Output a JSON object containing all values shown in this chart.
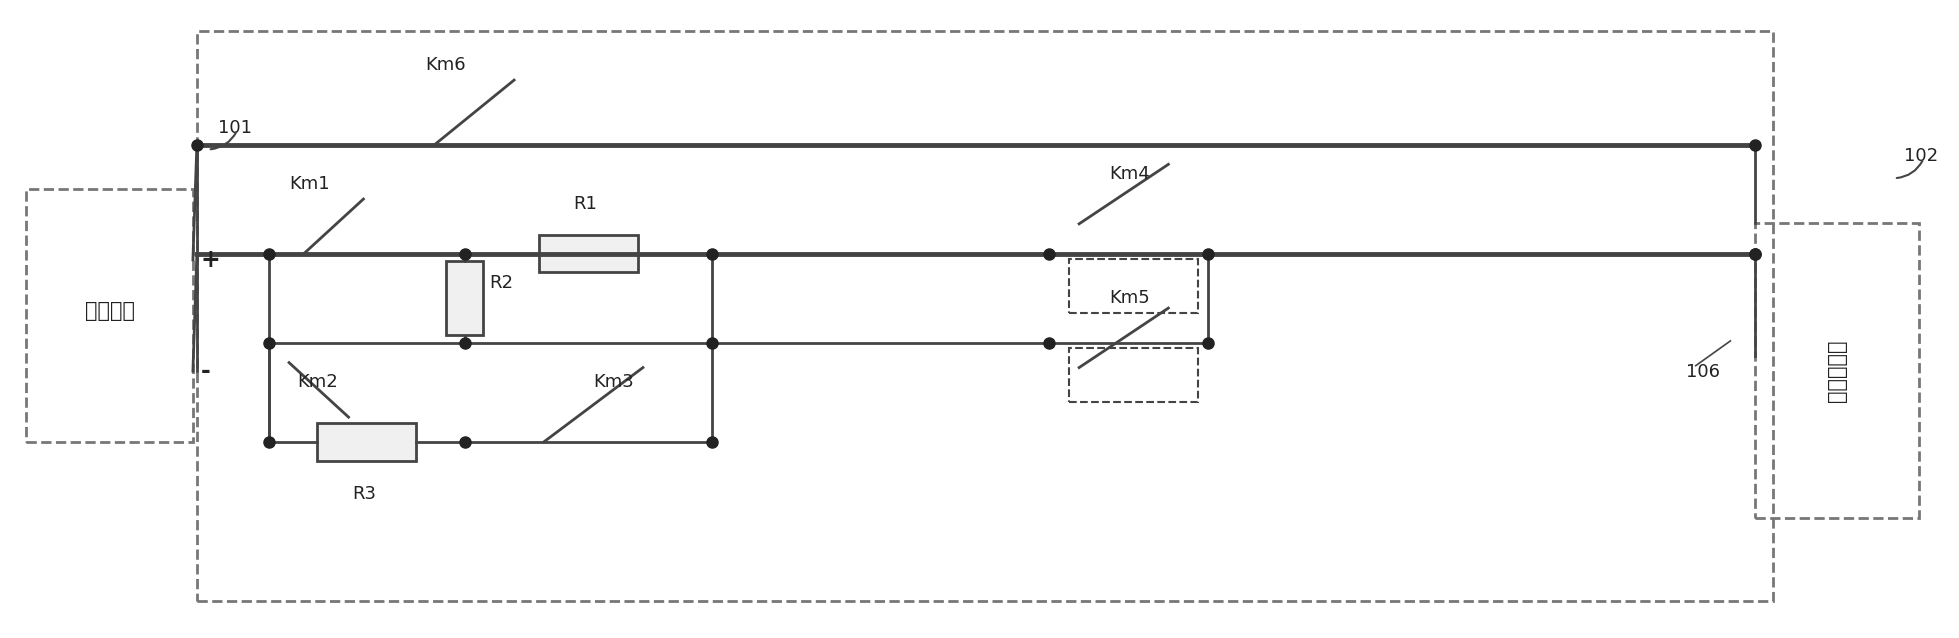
{
  "bg_color": "#ffffff",
  "line_color": "#444444",
  "border_color": "#777777",
  "text_color": "#222222",
  "fig_width": 19.59,
  "fig_height": 6.38,
  "storage_label": "储能单元",
  "motor_label": "电机驱动器",
  "label_101": "101",
  "label_102": "102",
  "label_106": "106",
  "switch_labels": [
    "Km6",
    "Km1",
    "Km2",
    "Km3",
    "Km4",
    "Km5"
  ],
  "resistor_labels": [
    "R1",
    "R2",
    "R3"
  ],
  "plus_label": "+",
  "minus_label": "-"
}
